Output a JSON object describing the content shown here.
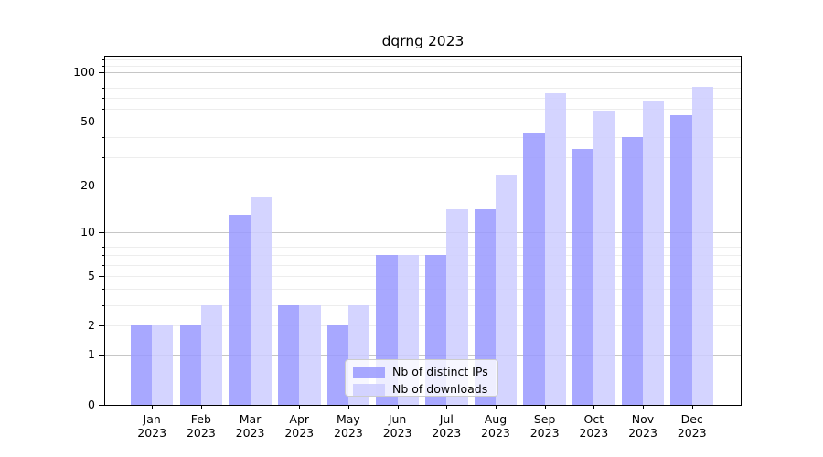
{
  "title": "dqrng 2023",
  "colors": {
    "ips": "#9999ff",
    "downloads": "#ccccff",
    "grid_major": "#c6c6c6",
    "grid_minor": "#ededed",
    "axis": "#000000",
    "legend_border": "#cccccc"
  },
  "legend": {
    "items": [
      {
        "label": "Nb of distinct IPs",
        "series": "ips"
      },
      {
        "label": "Nb of downloads",
        "series": "downloads"
      }
    ]
  },
  "chart_data": {
    "type": "bar",
    "title": "dqrng 2023",
    "x_categories": [
      "Jan",
      "Feb",
      "Mar",
      "Apr",
      "May",
      "Jun",
      "Jul",
      "Aug",
      "Sep",
      "Oct",
      "Nov",
      "Dec"
    ],
    "x_year": "2023",
    "series": [
      {
        "name": "Nb of distinct IPs",
        "color": "#9999ff",
        "values": [
          2,
          2,
          13,
          3,
          2,
          7,
          7,
          14,
          43,
          34,
          40,
          55
        ]
      },
      {
        "name": "Nb of downloads",
        "color": "#ccccff",
        "values": [
          2,
          3,
          17,
          3,
          3,
          7,
          14,
          23,
          74,
          58,
          66,
          81
        ]
      }
    ],
    "y_scale": "log10(1+x)",
    "y_ticks": [
      0,
      1,
      2,
      5,
      10,
      20,
      50,
      100
    ],
    "y_minor_ticks": [
      2,
      3,
      4,
      5,
      6,
      7,
      8,
      9,
      20,
      30,
      40,
      50,
      60,
      70,
      80,
      90,
      110,
      120
    ],
    "ylim": [
      0,
      124
    ],
    "grid": "on",
    "legend_position": "lower-center-inside"
  }
}
